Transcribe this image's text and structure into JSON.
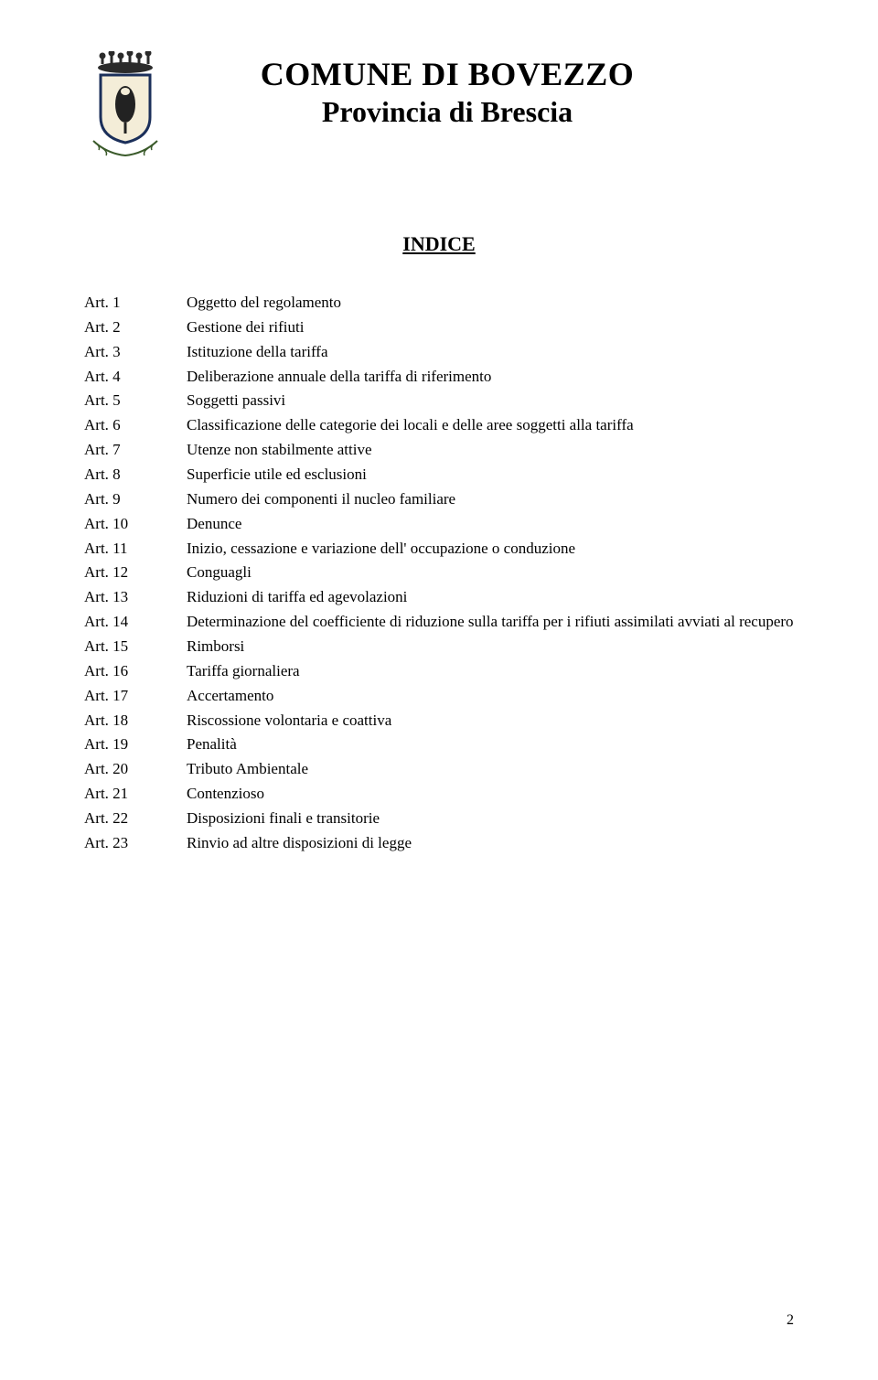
{
  "header": {
    "title_main": "COMUNE DI BOVEZZO",
    "title_sub": "Provincia di Brescia"
  },
  "indice_heading": "INDICE",
  "crest": {
    "crown_color": "#2b2b2b",
    "shield_border": "#1b2f5a",
    "shield_fill": "#f4edd8",
    "emblem_color": "#222222",
    "branch_color": "#3a5a2a"
  },
  "articles": [
    {
      "art": "Art. 1",
      "desc": "Oggetto del regolamento"
    },
    {
      "art": "Art. 2",
      "desc": "Gestione dei rifiuti"
    },
    {
      "art": "Art. 3",
      "desc": "Istituzione della tariffa"
    },
    {
      "art": "Art. 4",
      "desc": "Deliberazione annuale della tariffa di riferimento"
    },
    {
      "art": "Art. 5",
      "desc": "Soggetti passivi"
    },
    {
      "art": "Art. 6",
      "desc": "Classificazione delle categorie dei locali e delle aree soggetti alla tariffa"
    },
    {
      "art": "Art. 7",
      "desc": "Utenze non stabilmente attive"
    },
    {
      "art": "Art. 8",
      "desc": "Superficie utile ed esclusioni"
    },
    {
      "art": "Art. 9",
      "desc": "Numero dei componenti il nucleo familiare"
    },
    {
      "art": "Art. 10",
      "desc": "Denunce"
    },
    {
      "art": "Art. 11",
      "desc": "Inizio, cessazione e variazione dell' occupazione o conduzione"
    },
    {
      "art": "Art. 12",
      "desc": "Conguagli"
    },
    {
      "art": "Art. 13",
      "desc": "Riduzioni di tariffa ed agevolazioni"
    },
    {
      "art": "Art. 14",
      "desc": "Determinazione del coefficiente di riduzione sulla tariffa per i rifiuti assimilati avviati al recupero"
    },
    {
      "art": "Art. 15",
      "desc": "Rimborsi"
    },
    {
      "art": "Art. 16",
      "desc": "Tariffa giornaliera"
    },
    {
      "art": "Art. 17",
      "desc": "Accertamento"
    },
    {
      "art": "Art. 18",
      "desc": "Riscossione volontaria e coattiva"
    },
    {
      "art": "Art. 19",
      "desc": "Penalità"
    },
    {
      "art": "Art. 20",
      "desc": "Tributo Ambientale"
    },
    {
      "art": "Art. 21",
      "desc": "Contenzioso"
    },
    {
      "art": "Art. 22",
      "desc": "Disposizioni finali e transitorie"
    },
    {
      "art": "Art. 23",
      "desc": "Rinvio ad altre disposizioni di legge"
    }
  ],
  "page_number": "2"
}
